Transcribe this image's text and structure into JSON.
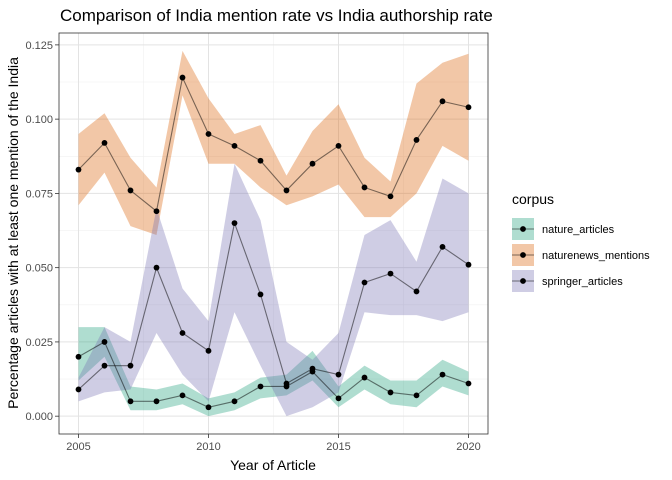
{
  "chart_data": {
    "type": "line",
    "title": "Comparison of India mention rate vs India authorship rate",
    "xlabel": "Year of Article",
    "ylabel": "Percentage articles with at least one mention of the India",
    "x": [
      2005,
      2006,
      2007,
      2008,
      2009,
      2010,
      2011,
      2012,
      2013,
      2014,
      2015,
      2016,
      2017,
      2018,
      2019,
      2020
    ],
    "xlim": [
      2004.25,
      2020.75
    ],
    "ylim": [
      -0.006,
      0.129
    ],
    "xticks": [
      "2005",
      "2010",
      "2015",
      "2020"
    ],
    "xtick_values": [
      2005,
      2010,
      2015,
      2020
    ],
    "yticks": [
      "0.000",
      "0.025",
      "0.050",
      "0.075",
      "0.100",
      "0.125"
    ],
    "ytick_values": [
      0.0,
      0.025,
      0.05,
      0.075,
      0.1,
      0.125
    ],
    "grid": true,
    "legend": {
      "title": "corpus",
      "position": "right"
    },
    "series": [
      {
        "name": "nature_articles",
        "color": "#1b9e77",
        "values": [
          0.02,
          0.025,
          0.005,
          0.005,
          0.007,
          0.003,
          0.005,
          0.01,
          0.01,
          0.015,
          0.006,
          0.013,
          0.008,
          0.007,
          0.014,
          0.011
        ],
        "lower": [
          0.012,
          0.02,
          0.002,
          0.002,
          0.004,
          0.0,
          0.002,
          0.006,
          0.007,
          0.012,
          0.003,
          0.009,
          0.004,
          0.003,
          0.01,
          0.007
        ],
        "upper": [
          0.03,
          0.03,
          0.01,
          0.009,
          0.011,
          0.006,
          0.008,
          0.013,
          0.014,
          0.022,
          0.01,
          0.017,
          0.012,
          0.012,
          0.019,
          0.015
        ]
      },
      {
        "name": "naturenews_mentions",
        "color": "#d95f02",
        "values": [
          0.083,
          0.092,
          0.076,
          0.069,
          0.114,
          0.095,
          0.091,
          0.086,
          0.076,
          0.085,
          0.091,
          0.077,
          0.074,
          0.093,
          0.106,
          0.104
        ],
        "lower": [
          0.071,
          0.082,
          0.064,
          0.061,
          0.108,
          0.085,
          0.085,
          0.077,
          0.071,
          0.074,
          0.078,
          0.067,
          0.067,
          0.075,
          0.091,
          0.086
        ],
        "upper": [
          0.095,
          0.102,
          0.087,
          0.077,
          0.123,
          0.107,
          0.095,
          0.098,
          0.081,
          0.096,
          0.105,
          0.087,
          0.079,
          0.112,
          0.119,
          0.122
        ]
      },
      {
        "name": "springer_articles",
        "color": "#7570b3",
        "values": [
          0.009,
          0.017,
          0.017,
          0.05,
          0.028,
          0.022,
          0.065,
          0.041,
          0.011,
          0.016,
          0.014,
          0.045,
          0.048,
          0.042,
          0.057,
          0.051
        ],
        "lower": [
          0.005,
          0.008,
          0.009,
          0.028,
          0.014,
          0.005,
          0.035,
          0.017,
          0.0,
          0.003,
          0.008,
          0.035,
          0.034,
          0.034,
          0.032,
          0.035
        ],
        "upper": [
          0.013,
          0.03,
          0.025,
          0.07,
          0.043,
          0.032,
          0.085,
          0.066,
          0.025,
          0.019,
          0.028,
          0.061,
          0.066,
          0.052,
          0.08,
          0.075
        ]
      }
    ]
  }
}
